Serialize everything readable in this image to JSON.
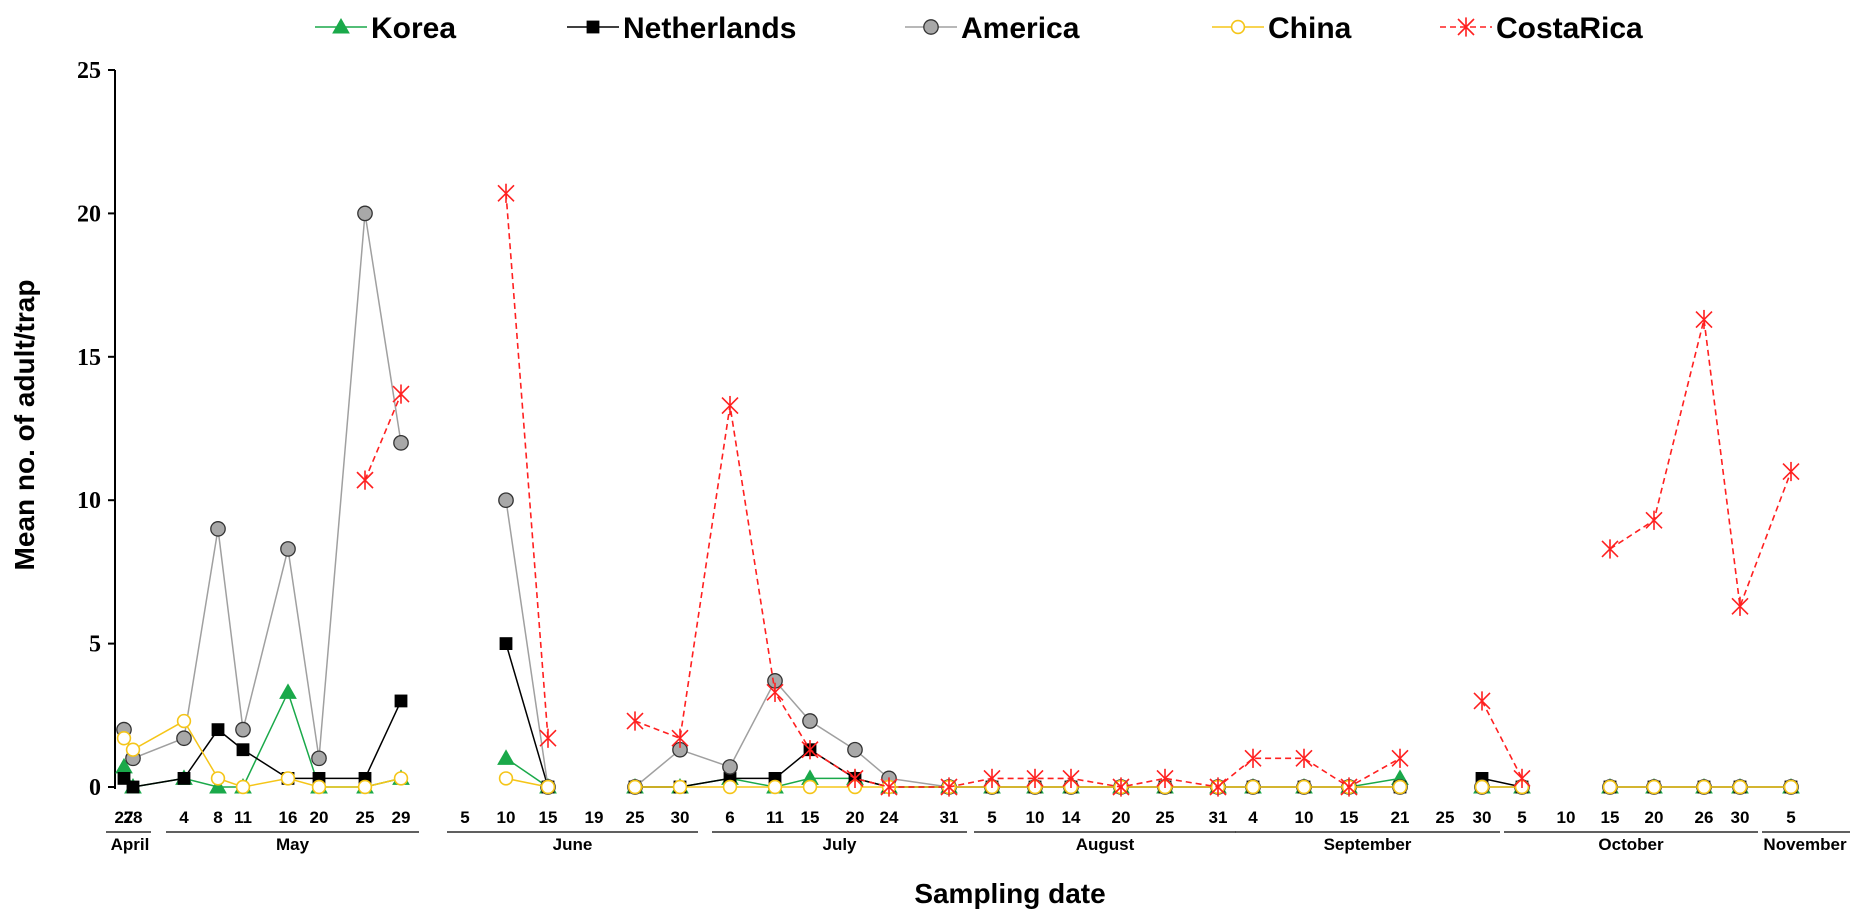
{
  "chart_data": {
    "type": "line",
    "xlabel": "Sampling date",
    "ylabel": "Mean no. of adult/trap",
    "ylim": [
      0,
      25
    ],
    "yticks": [
      "0",
      "5",
      "10",
      "15",
      "20",
      "25"
    ],
    "grid": false,
    "legend_position": "top",
    "dates": [
      {
        "label": "27",
        "month": "April"
      },
      {
        "label": "28",
        "month": "April"
      },
      {
        "label": "4",
        "month": "May"
      },
      {
        "label": "8",
        "month": "May"
      },
      {
        "label": "11",
        "month": "May"
      },
      {
        "label": "16",
        "month": "May"
      },
      {
        "label": "20",
        "month": "May"
      },
      {
        "label": "25",
        "month": "May"
      },
      {
        "label": "29",
        "month": "May"
      },
      {
        "label": "5",
        "month": "June"
      },
      {
        "label": "10",
        "month": "June"
      },
      {
        "label": "15",
        "month": "June"
      },
      {
        "label": "19",
        "month": "June"
      },
      {
        "label": "25",
        "month": "June"
      },
      {
        "label": "30",
        "month": "June"
      },
      {
        "label": "6",
        "month": "July"
      },
      {
        "label": "11",
        "month": "July"
      },
      {
        "label": "15",
        "month": "July"
      },
      {
        "label": "20",
        "month": "July"
      },
      {
        "label": "24",
        "month": "July"
      },
      {
        "label": "31",
        "month": "July"
      },
      {
        "label": "5",
        "month": "August"
      },
      {
        "label": "10",
        "month": "August"
      },
      {
        "label": "14",
        "month": "August"
      },
      {
        "label": "20",
        "month": "August"
      },
      {
        "label": "25",
        "month": "August"
      },
      {
        "label": "31",
        "month": "August"
      },
      {
        "label": "4",
        "month": "September"
      },
      {
        "label": "10",
        "month": "September"
      },
      {
        "label": "15",
        "month": "September"
      },
      {
        "label": "21",
        "month": "September"
      },
      {
        "label": "25",
        "month": "September"
      },
      {
        "label": "30",
        "month": "September"
      },
      {
        "label": "5",
        "month": "October"
      },
      {
        "label": "10",
        "month": "October"
      },
      {
        "label": "15",
        "month": "October"
      },
      {
        "label": "20",
        "month": "October"
      },
      {
        "label": "26",
        "month": "October"
      },
      {
        "label": "30",
        "month": "October"
      },
      {
        "label": "5",
        "month": "November"
      }
    ],
    "months": [
      {
        "name": "April",
        "from": 0,
        "to": 1
      },
      {
        "name": "May",
        "from": 2,
        "to": 8
      },
      {
        "name": "June",
        "from": 9,
        "to": 14
      },
      {
        "name": "July",
        "from": 15,
        "to": 20
      },
      {
        "name": "August",
        "from": 21,
        "to": 26
      },
      {
        "name": "September",
        "from": 27,
        "to": 32
      },
      {
        "name": "October",
        "from": 33,
        "to": 38
      },
      {
        "name": "November",
        "from": 39,
        "to": 39
      }
    ],
    "series": [
      {
        "name": "Korea",
        "color": "#1aa94a",
        "marker": "triangle",
        "dash": false,
        "values": [
          0.7,
          0.0,
          0.3,
          0.0,
          0.0,
          3.3,
          0.0,
          0.0,
          0.3,
          null,
          1.0,
          0.0,
          null,
          0.0,
          0.0,
          0.3,
          0.0,
          0.3,
          0.3,
          0.0,
          0.0,
          0.0,
          0.0,
          0.0,
          0.0,
          0.0,
          0.0,
          0.0,
          0.0,
          0.0,
          0.3,
          null,
          0.0,
          0.0,
          null,
          0.0,
          0.0,
          0.0,
          0.0,
          0.0
        ]
      },
      {
        "name": "Netherlands",
        "color": "#000000",
        "marker": "square",
        "dash": false,
        "values": [
          0.3,
          0.0,
          0.3,
          2.0,
          1.3,
          0.3,
          0.3,
          0.3,
          3.0,
          null,
          5.0,
          0.0,
          null,
          0.0,
          0.0,
          0.3,
          0.3,
          1.3,
          0.3,
          0.0,
          0.0,
          0.0,
          0.0,
          0.0,
          0.0,
          0.0,
          0.0,
          0.0,
          0.0,
          0.0,
          0.0,
          null,
          0.3,
          0.0,
          null,
          0.0,
          0.0,
          0.0,
          0.0,
          0.0
        ]
      },
      {
        "name": "America",
        "color": "#a0a0a0",
        "marker": "circle",
        "dash": false,
        "values": [
          2.0,
          1.0,
          1.7,
          9.0,
          2.0,
          8.3,
          1.0,
          20.0,
          12.0,
          null,
          10.0,
          0.0,
          null,
          0.0,
          1.3,
          0.7,
          3.7,
          2.3,
          1.3,
          0.3,
          0.0,
          0.0,
          0.0,
          0.0,
          0.0,
          0.0,
          0.0,
          0.0,
          0.0,
          0.0,
          0.0,
          null,
          0.0,
          0.0,
          null,
          0.0,
          0.0,
          0.0,
          0.0,
          0.0
        ]
      },
      {
        "name": "China",
        "color": "#f5c518",
        "marker": "open-circle",
        "dash": false,
        "values": [
          1.7,
          1.3,
          2.3,
          0.3,
          0.0,
          0.3,
          0.0,
          0.0,
          0.3,
          null,
          0.3,
          0.0,
          null,
          0.0,
          0.0,
          0.0,
          0.0,
          0.0,
          0.0,
          0.0,
          0.0,
          0.0,
          0.0,
          0.0,
          0.0,
          0.0,
          0.0,
          0.0,
          0.0,
          0.0,
          0.0,
          null,
          0.0,
          0.0,
          null,
          0.0,
          0.0,
          0.0,
          0.0,
          0.0
        ]
      },
      {
        "name": "CostaRica",
        "color": "#ff2020",
        "marker": "star",
        "dash": true,
        "values": [
          null,
          null,
          null,
          null,
          null,
          null,
          null,
          10.7,
          13.7,
          null,
          20.7,
          1.7,
          null,
          2.3,
          1.7,
          13.3,
          3.3,
          1.3,
          0.3,
          0.0,
          0.0,
          0.3,
          0.3,
          0.3,
          0.0,
          0.3,
          0.0,
          1.0,
          1.0,
          0.0,
          1.0,
          null,
          3.0,
          0.3,
          null,
          8.3,
          9.3,
          16.3,
          6.3,
          11.0
        ]
      }
    ]
  }
}
